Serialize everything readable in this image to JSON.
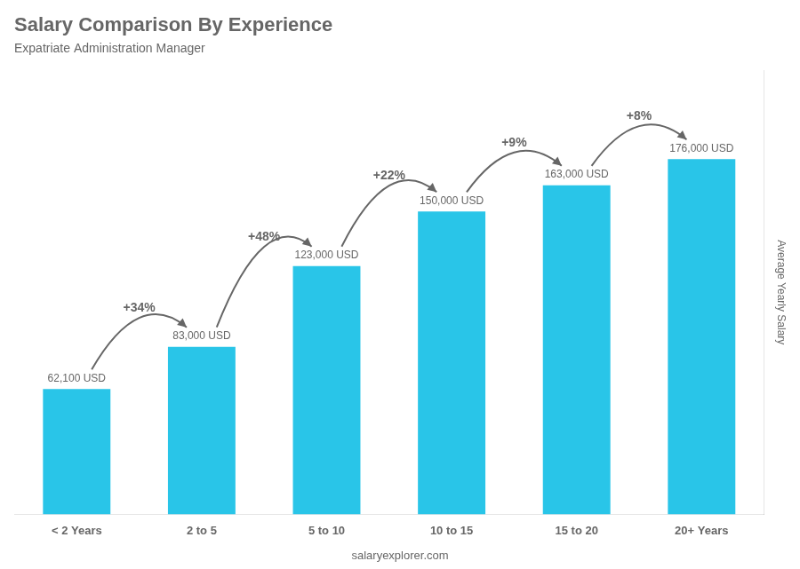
{
  "chart_data": {
    "type": "bar",
    "title": "Salary Comparison By Experience",
    "subtitle": "Expatriate Administration Manager",
    "categories": [
      "< 2 Years",
      "2 to 5",
      "5 to 10",
      "10 to 15",
      "15 to 20",
      "20+ Years"
    ],
    "values": [
      62100,
      83000,
      123000,
      150000,
      163000,
      176000
    ],
    "value_labels": [
      "62,100 USD",
      "83,000 USD",
      "123,000 USD",
      "150,000 USD",
      "163,000 USD",
      "176,000 USD"
    ],
    "data_labels": true,
    "annotations": [
      "+34%",
      "+48%",
      "+22%",
      "+9%",
      "+8%"
    ],
    "ylabel": "Average Yearly Salary",
    "footer": "salaryexplorer.com",
    "color": "#29c5e8",
    "ylim": [
      0,
      220000
    ],
    "tick_labels": "x",
    "grid": false
  }
}
